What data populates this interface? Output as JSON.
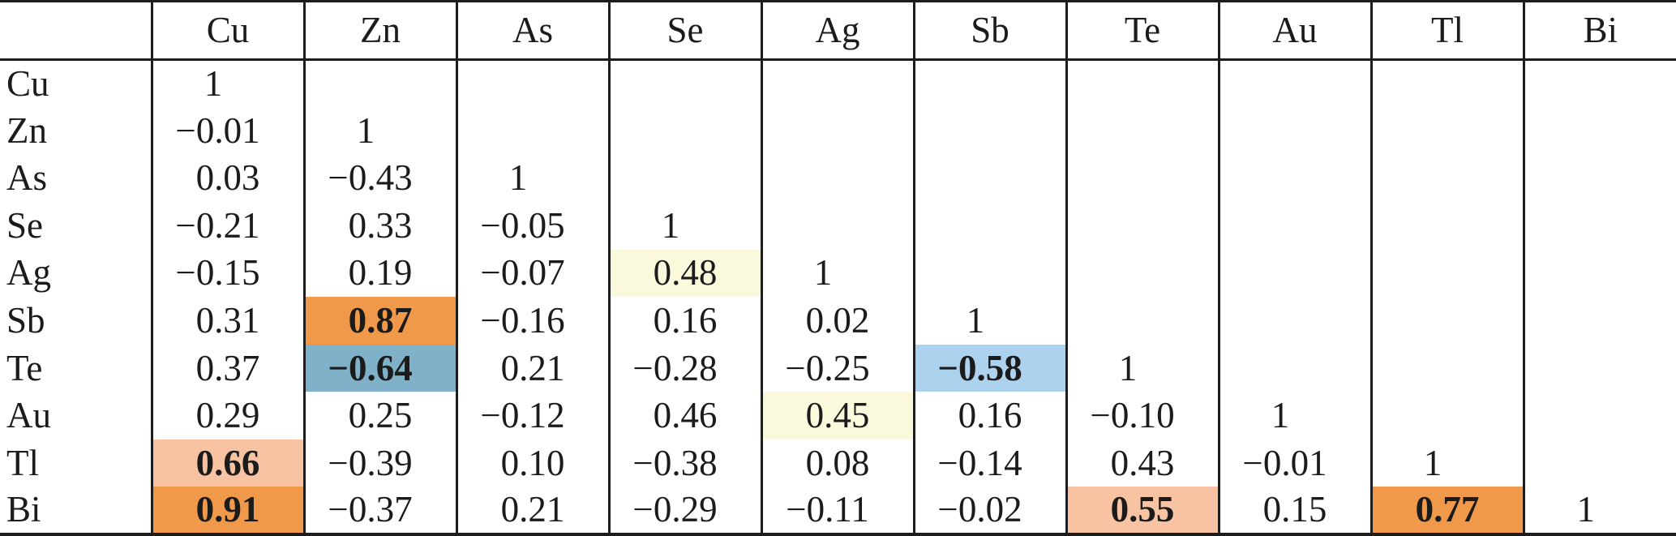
{
  "table": {
    "corner_label": "",
    "column_headers": [
      "Cu",
      "Zn",
      "As",
      "Se",
      "Ag",
      "Sb",
      "Te",
      "Au",
      "Tl",
      "Bi"
    ],
    "rows": [
      {
        "label": "Cu",
        "cells": [
          {
            "v": "1"
          }
        ]
      },
      {
        "label": "Zn",
        "cells": [
          {
            "v": "−0.01"
          },
          {
            "v": "1"
          }
        ]
      },
      {
        "label": "As",
        "cells": [
          {
            "v": "0.03"
          },
          {
            "v": "−0.43"
          },
          {
            "v": "1"
          }
        ]
      },
      {
        "label": "Se",
        "cells": [
          {
            "v": "−0.21"
          },
          {
            "v": "0.33"
          },
          {
            "v": "−0.05"
          },
          {
            "v": "1"
          }
        ]
      },
      {
        "label": "Ag",
        "cells": [
          {
            "v": "−0.15"
          },
          {
            "v": "0.19"
          },
          {
            "v": "−0.07"
          },
          {
            "v": "0.48",
            "bg": "pale_yellow"
          },
          {
            "v": "1"
          }
        ]
      },
      {
        "label": "Sb",
        "cells": [
          {
            "v": "0.31"
          },
          {
            "v": "0.87",
            "bg": "orange",
            "bold": true
          },
          {
            "v": "−0.16"
          },
          {
            "v": "0.16"
          },
          {
            "v": "0.02"
          },
          {
            "v": "1"
          }
        ]
      },
      {
        "label": "Te",
        "cells": [
          {
            "v": "0.37"
          },
          {
            "v": "−0.64",
            "bg": "steel_blue",
            "bold": true
          },
          {
            "v": "0.21"
          },
          {
            "v": "−0.28"
          },
          {
            "v": "−0.25"
          },
          {
            "v": "−0.58",
            "bg": "light_blue",
            "bold": true
          },
          {
            "v": "1"
          }
        ]
      },
      {
        "label": "Au",
        "cells": [
          {
            "v": "0.29"
          },
          {
            "v": "0.25"
          },
          {
            "v": "−0.12"
          },
          {
            "v": "0.46"
          },
          {
            "v": "0.45",
            "bg": "pale_yellow"
          },
          {
            "v": "0.16"
          },
          {
            "v": "−0.10"
          },
          {
            "v": "1"
          }
        ]
      },
      {
        "label": "Tl",
        "cells": [
          {
            "v": "0.66",
            "bg": "salmon",
            "bold": true
          },
          {
            "v": "−0.39"
          },
          {
            "v": "0.10"
          },
          {
            "v": "−0.38"
          },
          {
            "v": "0.08"
          },
          {
            "v": "−0.14"
          },
          {
            "v": "0.43"
          },
          {
            "v": "−0.01"
          },
          {
            "v": "1"
          }
        ]
      },
      {
        "label": "Bi",
        "cells": [
          {
            "v": "0.91",
            "bg": "orange",
            "bold": true
          },
          {
            "v": "−0.37"
          },
          {
            "v": "0.21"
          },
          {
            "v": "−0.29"
          },
          {
            "v": "−0.11"
          },
          {
            "v": "−0.02"
          },
          {
            "v": "0.55",
            "bg": "salmon",
            "bold": true
          },
          {
            "v": "0.15"
          },
          {
            "v": "0.77",
            "bg": "orange",
            "bold": true
          },
          {
            "v": "1"
          }
        ]
      }
    ]
  },
  "highlight_colors": {
    "orange": "#F0994B",
    "salmon": "#F7C3A2",
    "steel_blue": "#7FB2C8",
    "light_blue": "#ACD2EE",
    "pale_yellow": "#FAF9DC"
  },
  "chart_data": {
    "type": "table",
    "subtype": "correlation-matrix-lower-triangle",
    "variables": [
      "Cu",
      "Zn",
      "As",
      "Se",
      "Ag",
      "Sb",
      "Te",
      "Au",
      "Tl",
      "Bi"
    ],
    "matrix_lower_triangle": [
      [
        1
      ],
      [
        -0.01,
        1
      ],
      [
        0.03,
        -0.43,
        1
      ],
      [
        -0.21,
        0.33,
        -0.05,
        1
      ],
      [
        -0.15,
        0.19,
        -0.07,
        0.48,
        1
      ],
      [
        0.31,
        0.87,
        -0.16,
        0.16,
        0.02,
        1
      ],
      [
        0.37,
        -0.64,
        0.21,
        -0.28,
        -0.25,
        -0.58,
        1
      ],
      [
        0.29,
        0.25,
        -0.12,
        0.46,
        0.45,
        0.16,
        -0.1,
        1
      ],
      [
        0.66,
        -0.39,
        0.1,
        -0.38,
        0.08,
        -0.14,
        0.43,
        -0.01,
        1
      ],
      [
        0.91,
        -0.37,
        0.21,
        -0.29,
        -0.11,
        -0.02,
        0.55,
        0.15,
        0.77,
        1
      ]
    ],
    "highlighted_cells": [
      {
        "row": "Ag",
        "col": "Se",
        "value": 0.48,
        "color": "pale_yellow",
        "bold": false
      },
      {
        "row": "Sb",
        "col": "Zn",
        "value": 0.87,
        "color": "orange",
        "bold": true
      },
      {
        "row": "Te",
        "col": "Zn",
        "value": -0.64,
        "color": "steel_blue",
        "bold": true
      },
      {
        "row": "Te",
        "col": "Sb",
        "value": -0.58,
        "color": "light_blue",
        "bold": true
      },
      {
        "row": "Au",
        "col": "Ag",
        "value": 0.45,
        "color": "pale_yellow",
        "bold": false
      },
      {
        "row": "Tl",
        "col": "Cu",
        "value": 0.66,
        "color": "salmon",
        "bold": true
      },
      {
        "row": "Bi",
        "col": "Cu",
        "value": 0.91,
        "color": "orange",
        "bold": true
      },
      {
        "row": "Bi",
        "col": "Te",
        "value": 0.55,
        "color": "salmon",
        "bold": true
      },
      {
        "row": "Bi",
        "col": "Tl",
        "value": 0.77,
        "color": "orange",
        "bold": true
      }
    ],
    "layout": {
      "grid": "vertical rules between all columns; horizontal rules only at top, below header, and bottom",
      "diagonal_value": 1
    }
  }
}
